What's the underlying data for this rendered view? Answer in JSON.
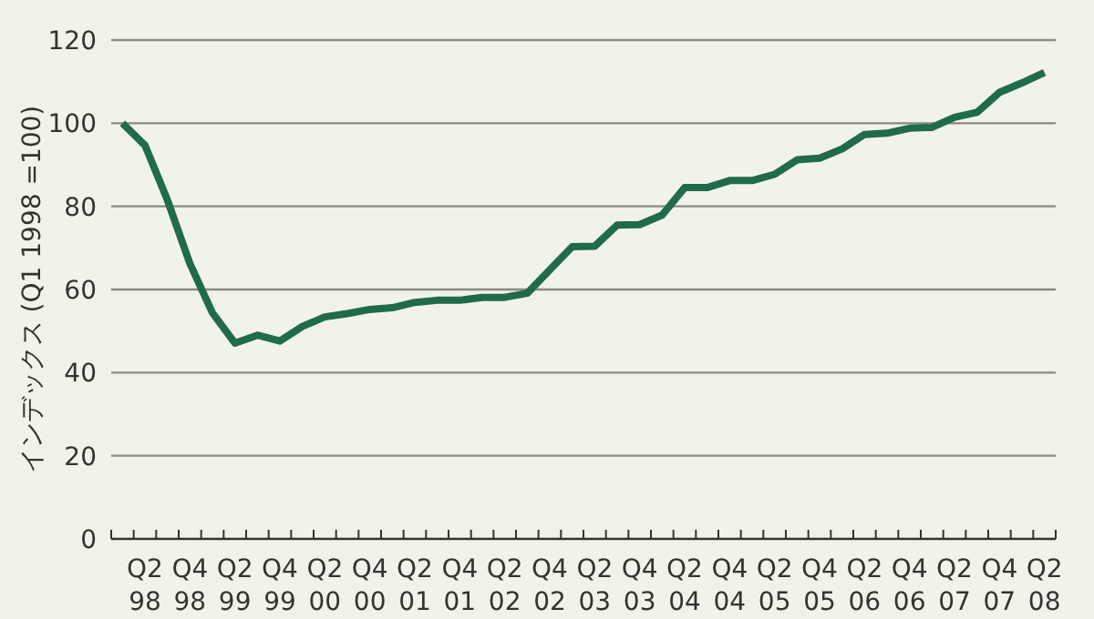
{
  "chart_data": {
    "type": "line",
    "ylabel": "インデックス (Q1 1998 =100)",
    "categories": [
      null,
      "Q2\n98",
      null,
      "Q4\n98",
      null,
      "Q2\n99",
      null,
      "Q4\n99",
      null,
      "Q2\n00",
      null,
      "Q4\n00",
      null,
      "Q2\n01",
      null,
      "Q4\n01",
      null,
      "Q2\n02",
      null,
      "Q4\n02",
      null,
      "Q2\n03",
      null,
      "Q4\n03",
      null,
      "Q2\n04",
      null,
      "Q4\n04",
      null,
      "Q2\n05",
      null,
      "Q4\n05",
      null,
      "Q2\n06",
      null,
      "Q4\n06",
      null,
      "Q2\n07",
      null,
      "Q4\n07",
      null,
      "Q2\n08"
    ],
    "series": [
      {
        "color": "#1f6b4a",
        "values": [
          100,
          94.7,
          81.5,
          66.2,
          54.4,
          47.1,
          49.0,
          47.6,
          51.1,
          53.4,
          54.2,
          55.2,
          55.6,
          56.9,
          57.4,
          57.4,
          58.1,
          58.1,
          59.1,
          64.7,
          70.3,
          70.4,
          75.5,
          75.6,
          77.9,
          84.5,
          84.5,
          86.2,
          86.2,
          87.7,
          91.2,
          91.6,
          93.8,
          97.3,
          97.6,
          98.8,
          99.0,
          101.4,
          102.6,
          107.4,
          109.7,
          112.2
        ]
      }
    ],
    "ylim": [
      0,
      120
    ],
    "yticks": [
      0,
      20,
      40,
      60,
      80,
      100,
      120
    ],
    "grid": "y"
  }
}
